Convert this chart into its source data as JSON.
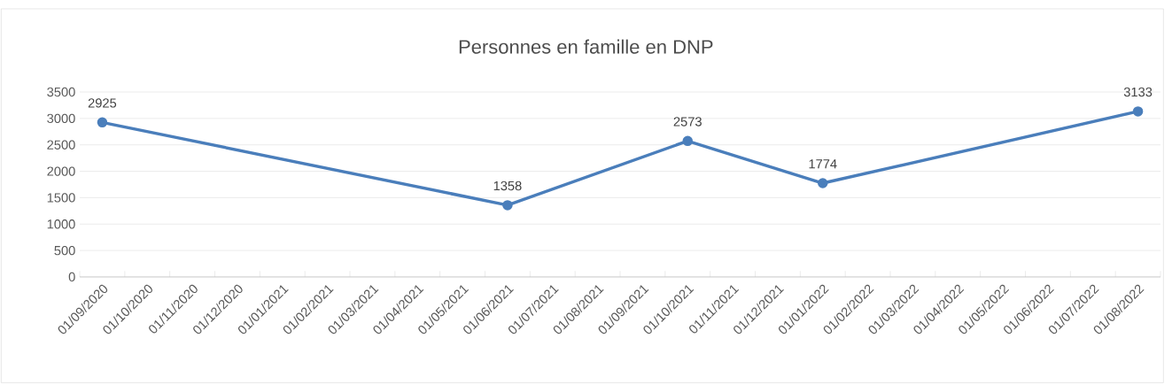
{
  "chart_data": {
    "type": "line",
    "title": "Personnes en famille en DNP",
    "x": [
      "2020-09-01",
      "2021-06-01",
      "2021-10-01",
      "2022-01-01",
      "2022-08-01"
    ],
    "values": [
      2925,
      1358,
      2573,
      1774,
      3133
    ],
    "color": "#4a7ebb",
    "xlim": [
      "2020-08-16",
      "2022-08-16"
    ],
    "xticks": [
      {
        "value": "2020-09-01",
        "label": "01/09/2020"
      },
      {
        "value": "2020-10-01",
        "label": "01/10/2020"
      },
      {
        "value": "2020-11-01",
        "label": "01/11/2020"
      },
      {
        "value": "2020-12-01",
        "label": "01/12/2020"
      },
      {
        "value": "2021-01-01",
        "label": "01/01/2021"
      },
      {
        "value": "2021-02-01",
        "label": "01/02/2021"
      },
      {
        "value": "2021-03-01",
        "label": "01/03/2021"
      },
      {
        "value": "2021-04-01",
        "label": "01/04/2021"
      },
      {
        "value": "2021-05-01",
        "label": "01/05/2021"
      },
      {
        "value": "2021-06-01",
        "label": "01/06/2021"
      },
      {
        "value": "2021-07-01",
        "label": "01/07/2021"
      },
      {
        "value": "2021-08-01",
        "label": "01/08/2021"
      },
      {
        "value": "2021-09-01",
        "label": "01/09/2021"
      },
      {
        "value": "2021-10-01",
        "label": "01/10/2021"
      },
      {
        "value": "2021-11-01",
        "label": "01/11/2021"
      },
      {
        "value": "2021-12-01",
        "label": "01/12/2021"
      },
      {
        "value": "2022-01-01",
        "label": "01/01/2022"
      },
      {
        "value": "2022-02-01",
        "label": "01/02/2022"
      },
      {
        "value": "2022-03-01",
        "label": "01/03/2022"
      },
      {
        "value": "2022-04-01",
        "label": "01/04/2022"
      },
      {
        "value": "2022-05-01",
        "label": "01/05/2022"
      },
      {
        "value": "2022-06-01",
        "label": "01/06/2022"
      },
      {
        "value": "2022-07-01",
        "label": "01/07/2022"
      },
      {
        "value": "2022-08-01",
        "label": "01/08/2022"
      }
    ],
    "ylim": [
      0,
      3500
    ],
    "yticks": [
      0,
      500,
      1000,
      1500,
      2000,
      2500,
      3000,
      3500
    ],
    "grid": "y",
    "marker": "circle",
    "line_style": "solid",
    "data_labels": true
  }
}
